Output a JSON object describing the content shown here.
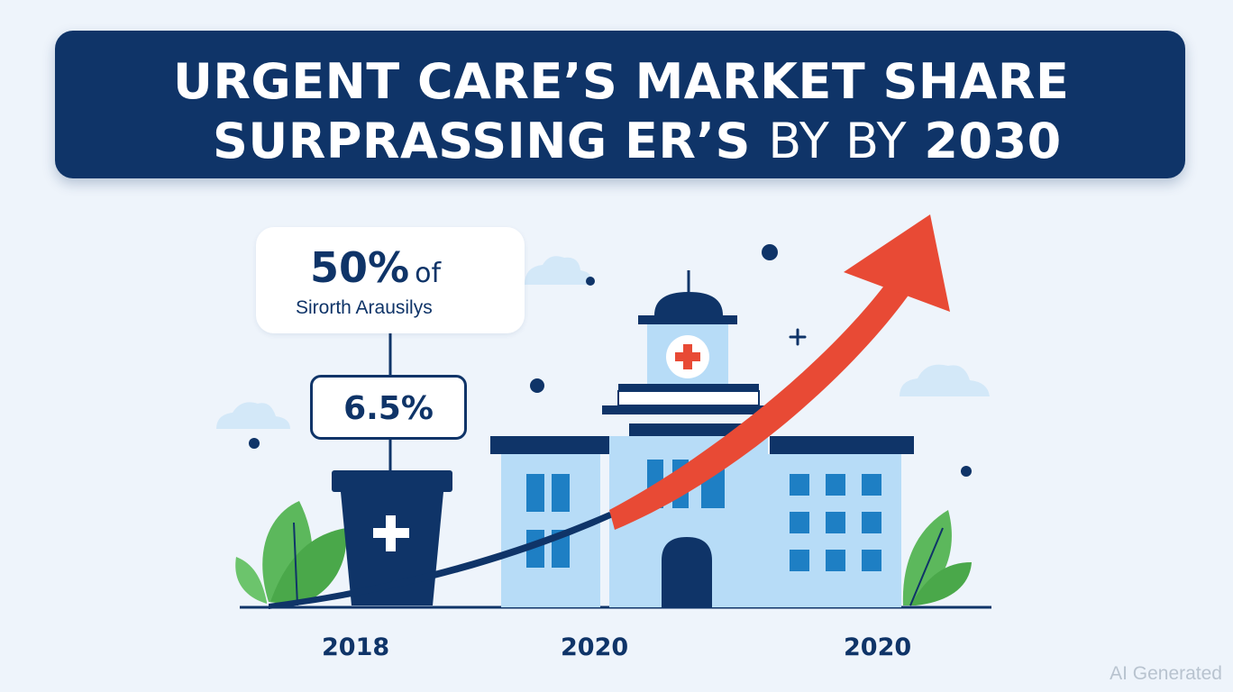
{
  "banner": {
    "title_line1": "URGENT CARE’S MARKET SHARE",
    "title_line2_bold": "SURPRASSING ER’S",
    "title_line2_light": "BY BY",
    "title_line2_end": "2030"
  },
  "callout": {
    "percent": "50%",
    "of": "of",
    "subtitle": "Sirorth Arausilys"
  },
  "value_box": {
    "text": "6.5%"
  },
  "years": [
    "2018",
    "2020",
    "2020"
  ],
  "watermark": "AI Generated",
  "colors": {
    "navy": "#0f3468",
    "background": "#eef4fb",
    "arrow_red": "#e84a35",
    "building_light_blue": "#b7dcf7",
    "window_blue": "#1e7fc4",
    "leaf_green": "#5cb85c"
  },
  "icons": [
    "medical-cross-icon",
    "trend-arrow-icon",
    "cloud-icon",
    "leaf-icon"
  ]
}
